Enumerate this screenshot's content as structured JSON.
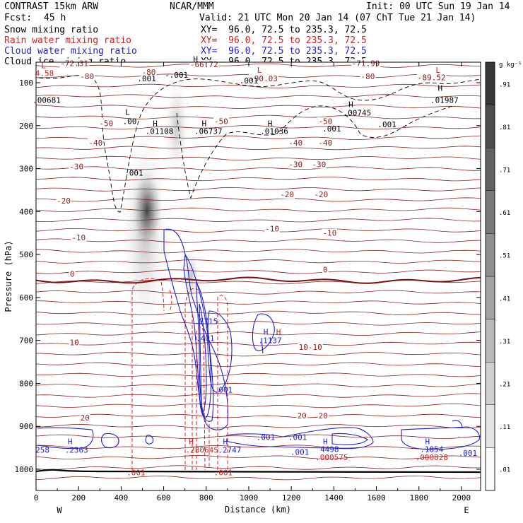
{
  "header": {
    "model": "CONTRAST 15km ARW",
    "org": "NCAR/MMM",
    "init": "Init: 00 UTC Sun 19 Jan 14",
    "fcst_label": "Fcst:",
    "fcst_value": "45 h",
    "valid": "Valid: 21 UTC Mon 20 Jan 14 (07 ChT Tue 21 Jan 14)",
    "fields": [
      {
        "name": "Snow mixing ratio",
        "xy": "XY=  96.0, 72.5 to 235.3, 72.5",
        "color": "#000000"
      },
      {
        "name": "Rain water mixing ratio",
        "xy": "XY=  96.0, 72.5 to 235.3, 72.5",
        "color": "#d22020"
      },
      {
        "name": "Cloud water mixing ratio",
        "xy": "XY=  96.0, 72.5 to 235.3, 72.5",
        "color": "#2020d0"
      },
      {
        "name": "Cloud ice mixing ratio",
        "xy": "XY=  96.0, 72.5 to 235.3, 72.5",
        "color": "#000000"
      }
    ]
  },
  "chart_data": {
    "type": "heatmap",
    "xlabel": "Distance (km)",
    "ylabel": "Pressure (hPa)",
    "xlim": [
      0,
      2090
    ],
    "ylim": [
      1050,
      50
    ],
    "xticks": [
      0,
      200,
      400,
      600,
      800,
      1000,
      1200,
      1400,
      1600,
      1800,
      2000
    ],
    "yticks": [
      100,
      200,
      300,
      400,
      500,
      600,
      700,
      800,
      900,
      1000
    ],
    "x_end_labels": {
      "left": "W",
      "right": "E"
    },
    "colorbar": {
      "unit": "g kg⁻¹",
      "levels": [
        0.01,
        0.11,
        0.21,
        0.31,
        0.41,
        0.51,
        0.61,
        0.71,
        0.81,
        0.91
      ],
      "labels": [
        ".01",
        ".11",
        ".21",
        ".31",
        ".41",
        ".51",
        ".61",
        ".71",
        ".81",
        ".91"
      ]
    },
    "snow_max": {
      "x": 530,
      "p": 400,
      "value": 0.9
    },
    "temperature_contours": {
      "color": "#8b2020",
      "zero_line_p": 560,
      "labels": [
        {
          "text": "-72.31",
          "x": 180,
          "p": 55
        },
        {
          "text": "-66.72",
          "x": 790,
          "p": 57
        },
        {
          "text": "-71.99",
          "x": 1550,
          "p": 55
        },
        {
          "text": "-80",
          "x": 240,
          "p": 85
        },
        {
          "text": "-80",
          "x": 530,
          "p": 75
        },
        {
          "text": "-80",
          "x": 1560,
          "p": 85
        },
        {
          "text": "-89.52",
          "x": 1860,
          "p": 88
        },
        {
          "text": "-90.03",
          "x": 1070,
          "p": 90
        },
        {
          "text": "-50",
          "x": 330,
          "p": 195
        },
        {
          "text": "-50",
          "x": 870,
          "p": 190
        },
        {
          "text": "-50",
          "x": 1360,
          "p": 190
        },
        {
          "text": "-40",
          "x": 280,
          "p": 240
        },
        {
          "text": "-40",
          "x": 1220,
          "p": 240
        },
        {
          "text": "-40",
          "x": 1360,
          "p": 240
        },
        {
          "text": "-30",
          "x": 190,
          "p": 295
        },
        {
          "text": "-30",
          "x": 1220,
          "p": 290
        },
        {
          "text": "-30",
          "x": 1330,
          "p": 290
        },
        {
          "text": "-20",
          "x": 130,
          "p": 375
        },
        {
          "text": "-20",
          "x": 1180,
          "p": 360
        },
        {
          "text": "-20",
          "x": 1340,
          "p": 360
        },
        {
          "text": "-10",
          "x": 200,
          "p": 460
        },
        {
          "text": "-10",
          "x": 1110,
          "p": 440
        },
        {
          "text": "-10",
          "x": 1380,
          "p": 450
        },
        {
          "text": "0",
          "x": 170,
          "p": 545
        },
        {
          "text": "0",
          "x": 1360,
          "p": 535
        },
        {
          "text": "10",
          "x": 180,
          "p": 705
        },
        {
          "text": "10-10",
          "x": 1290,
          "p": 715
        },
        {
          "text": "20",
          "x": 230,
          "p": 880
        },
        {
          "text": "20",
          "x": 1250,
          "p": 875
        },
        {
          "text": "20",
          "x": 1350,
          "p": 875
        }
      ]
    },
    "marks": [
      {
        "text": "L",
        "x": 35,
        "p": 60,
        "color": "#d22020"
      },
      {
        "text": "4.58",
        "x": 40,
        "p": 78,
        "color": "#d22020"
      },
      {
        "text": "L",
        "x": 1050,
        "p": 70,
        "color": "#d22020"
      },
      {
        "text": "L",
        "x": 1890,
        "p": 70,
        "color": "#d22020"
      },
      {
        "text": "H",
        "x": 750,
        "p": 45,
        "color": "#000000"
      },
      {
        "text": ".00681",
        "x": 50,
        "p": 140,
        "color": "#000000"
      },
      {
        "text": ".001",
        "x": 520,
        "p": 90,
        "color": "#000000"
      },
      {
        "text": "-.001",
        "x": 660,
        "p": 82,
        "color": "#000000"
      },
      {
        "text": ".001",
        "x": 1000,
        "p": 95,
        "color": "#000000"
      },
      {
        "text": "H",
        "x": 1900,
        "p": 112,
        "color": "#000000"
      },
      {
        "text": ".01987",
        "x": 1920,
        "p": 140,
        "color": "#000000"
      },
      {
        "text": "H",
        "x": 1480,
        "p": 150,
        "color": "#000000"
      },
      {
        "text": ".00745",
        "x": 1510,
        "p": 170,
        "color": "#000000"
      },
      {
        "text": "L",
        "x": 430,
        "p": 168,
        "color": "#000000"
      },
      {
        "text": ".00",
        "x": 440,
        "p": 190,
        "color": "#000000"
      },
      {
        "text": "H",
        "x": 560,
        "p": 195,
        "color": "#000000"
      },
      {
        "text": ".01108",
        "x": 580,
        "p": 213,
        "color": "#000000"
      },
      {
        "text": "H",
        "x": 790,
        "p": 195,
        "color": "#000000"
      },
      {
        "text": ".06737",
        "x": 810,
        "p": 213,
        "color": "#000000"
      },
      {
        "text": "H",
        "x": 1100,
        "p": 195,
        "color": "#000000"
      },
      {
        "text": ".01036",
        "x": 1120,
        "p": 213,
        "color": "#000000"
      },
      {
        "text": ".001",
        "x": 1390,
        "p": 207,
        "color": "#000000"
      },
      {
        "text": ".001",
        "x": 1650,
        "p": 197,
        "color": "#000000"
      },
      {
        "text": ".001",
        "x": 460,
        "p": 310,
        "color": "#000000"
      },
      {
        "text": "H",
        "x": 1080,
        "p": 680,
        "color": "#2020d0"
      },
      {
        "text": "H",
        "x": 1140,
        "p": 680,
        "color": "#d22020"
      },
      {
        "text": ".1137",
        "x": 1100,
        "p": 700,
        "color": "#2020d0"
      },
      {
        "text": ".7715",
        "x": 800,
        "p": 655,
        "color": "#2020d0"
      },
      {
        "text": ".401",
        "x": 795,
        "p": 695,
        "color": "#2020d0"
      },
      {
        "text": ".001",
        "x": 880,
        "p": 815,
        "color": "#2020d0"
      },
      {
        "text": "H",
        "x": 160,
        "p": 935,
        "color": "#2020d0"
      },
      {
        "text": ".2363",
        "x": 190,
        "p": 955,
        "color": "#2020d0"
      },
      {
        "text": "258",
        "x": 30,
        "p": 955,
        "color": "#2020d0"
      },
      {
        "text": ".001",
        "x": 1080,
        "p": 925,
        "color": "#2020d0"
      },
      {
        "text": ".001",
        "x": 1230,
        "p": 925,
        "color": "#2020d0"
      },
      {
        "text": ".001",
        "x": 1240,
        "p": 960,
        "color": "#2020d0"
      },
      {
        "text": "H",
        "x": 890,
        "p": 935,
        "color": "#2020d0"
      },
      {
        "text": ".2747",
        "x": 910,
        "p": 955,
        "color": "#2020d0"
      },
      {
        "text": "H",
        "x": 730,
        "p": 935,
        "color": "#d22020"
      },
      {
        "text": ".280645",
        "x": 780,
        "p": 955,
        "color": "#d22020"
      },
      {
        "text": "H",
        "x": 1360,
        "p": 935,
        "color": "#2020d0"
      },
      {
        "text": "4498",
        "x": 1380,
        "p": 953,
        "color": "#2020d0"
      },
      {
        "text": ".000575",
        "x": 1390,
        "p": 972,
        "color": "#d22020"
      },
      {
        "text": "H",
        "x": 1840,
        "p": 935,
        "color": "#2020d0"
      },
      {
        "text": ".1854",
        "x": 1860,
        "p": 953,
        "color": "#2020d0"
      },
      {
        "text": ".000828",
        "x": 1860,
        "p": 972,
        "color": "#d22020"
      },
      {
        "text": ".001",
        "x": 2030,
        "p": 962,
        "color": "#2020d0"
      },
      {
        "text": ".001",
        "x": 470,
        "p": 1007,
        "color": "#d22020"
      },
      {
        "text": ".001",
        "x": 880,
        "p": 1007,
        "color": "#d22020"
      }
    ]
  }
}
